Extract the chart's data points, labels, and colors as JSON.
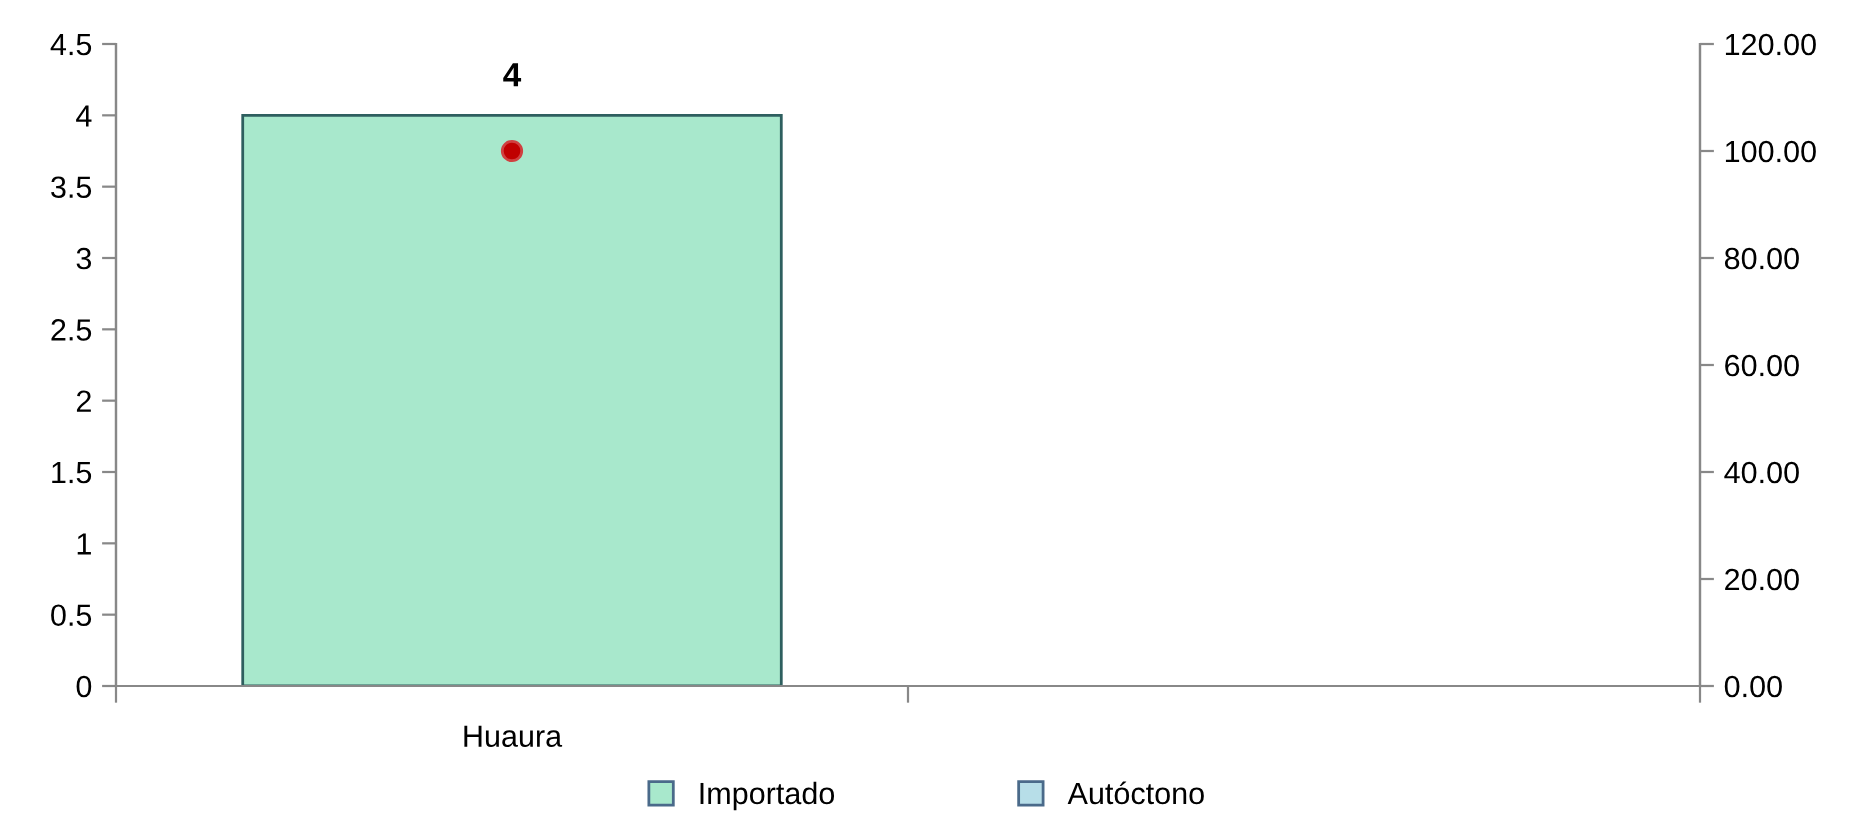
{
  "chart_data": {
    "type": "bar",
    "categories": [
      "Huaura",
      null
    ],
    "series": [
      {
        "name": "Importado",
        "color": "#a8e8cc",
        "values": [
          4,
          null
        ],
        "value_labels": [
          "4",
          null
        ]
      },
      {
        "name": "Autóctono",
        "color": "#b7dee8",
        "values": [
          null,
          null
        ]
      },
      {
        "type": "scatter",
        "axis": "y2",
        "color": "#c00000",
        "values": [
          100,
          null
        ]
      }
    ],
    "ylim": [
      0,
      4.5
    ],
    "yticks": [
      0,
      0.5,
      1,
      1.5,
      2,
      2.5,
      3,
      3.5,
      4,
      4.5
    ],
    "y2lim": [
      0,
      120
    ],
    "y2ticks": [
      {
        "value": 0,
        "label": "0.00"
      },
      {
        "value": 20,
        "label": "20.00"
      },
      {
        "value": 40,
        "label": "40.00"
      },
      {
        "value": 60,
        "label": "60.00"
      },
      {
        "value": 80,
        "label": "80.00"
      },
      {
        "value": 100,
        "label": "100.00"
      },
      {
        "value": 120,
        "label": "120.00"
      }
    ],
    "grid": false,
    "legend": "bottom",
    "marker": "circle"
  }
}
